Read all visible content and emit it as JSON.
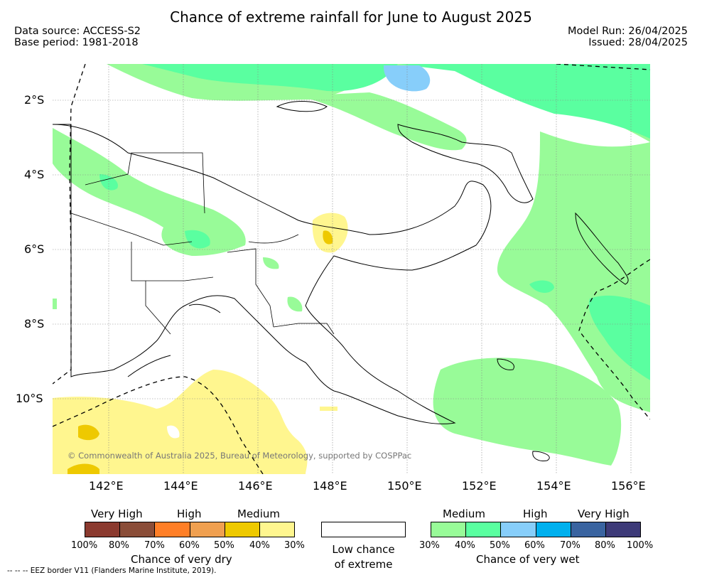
{
  "title": "Chance of extreme rainfall for June to August 2025",
  "meta": {
    "data_source": "Data source: ACCESS-S2",
    "base_period": "Base period: 1981-2018",
    "model_run": "Model Run: 26/04/2025",
    "issued": "Issued: 28/04/2025"
  },
  "axes": {
    "lat_labels": [
      "2°S",
      "4°S",
      "6°S",
      "8°S",
      "10°S"
    ],
    "lon_labels": [
      "142°E",
      "144°E",
      "146°E",
      "148°E",
      "150°E",
      "152°E",
      "154°E",
      "156°E"
    ]
  },
  "copyright": "© Commonwealth of Australia 2025, Bureau of Meteorology, supported by COSPPac",
  "legend": {
    "dry": {
      "levels": [
        "Very High",
        "High",
        "Medium"
      ],
      "colors": [
        "#8b3a2f",
        "#8a4d38",
        "#ff7f27",
        "#f0a050",
        "#eec900",
        "#fff68f"
      ],
      "ticks": [
        "100%",
        "80%",
        "70%",
        "60%",
        "50%",
        "40%",
        "30%"
      ],
      "title": "Chance of very dry"
    },
    "low": {
      "line1": "Low chance",
      "line2": "of extreme"
    },
    "wet": {
      "levels": [
        "Medium",
        "High",
        "Very High"
      ],
      "colors": [
        "#98fb98",
        "#5affa0",
        "#87cefa",
        "#00b0ee",
        "#3a64a0",
        "#3d3a78"
      ],
      "ticks": [
        "30%",
        "40%",
        "50%",
        "60%",
        "70%",
        "80%",
        "100%"
      ],
      "title": "Chance of very wet"
    }
  },
  "footer": "--  --  -- EEZ border V11 (Flanders Marine Institute, 2019)."
}
